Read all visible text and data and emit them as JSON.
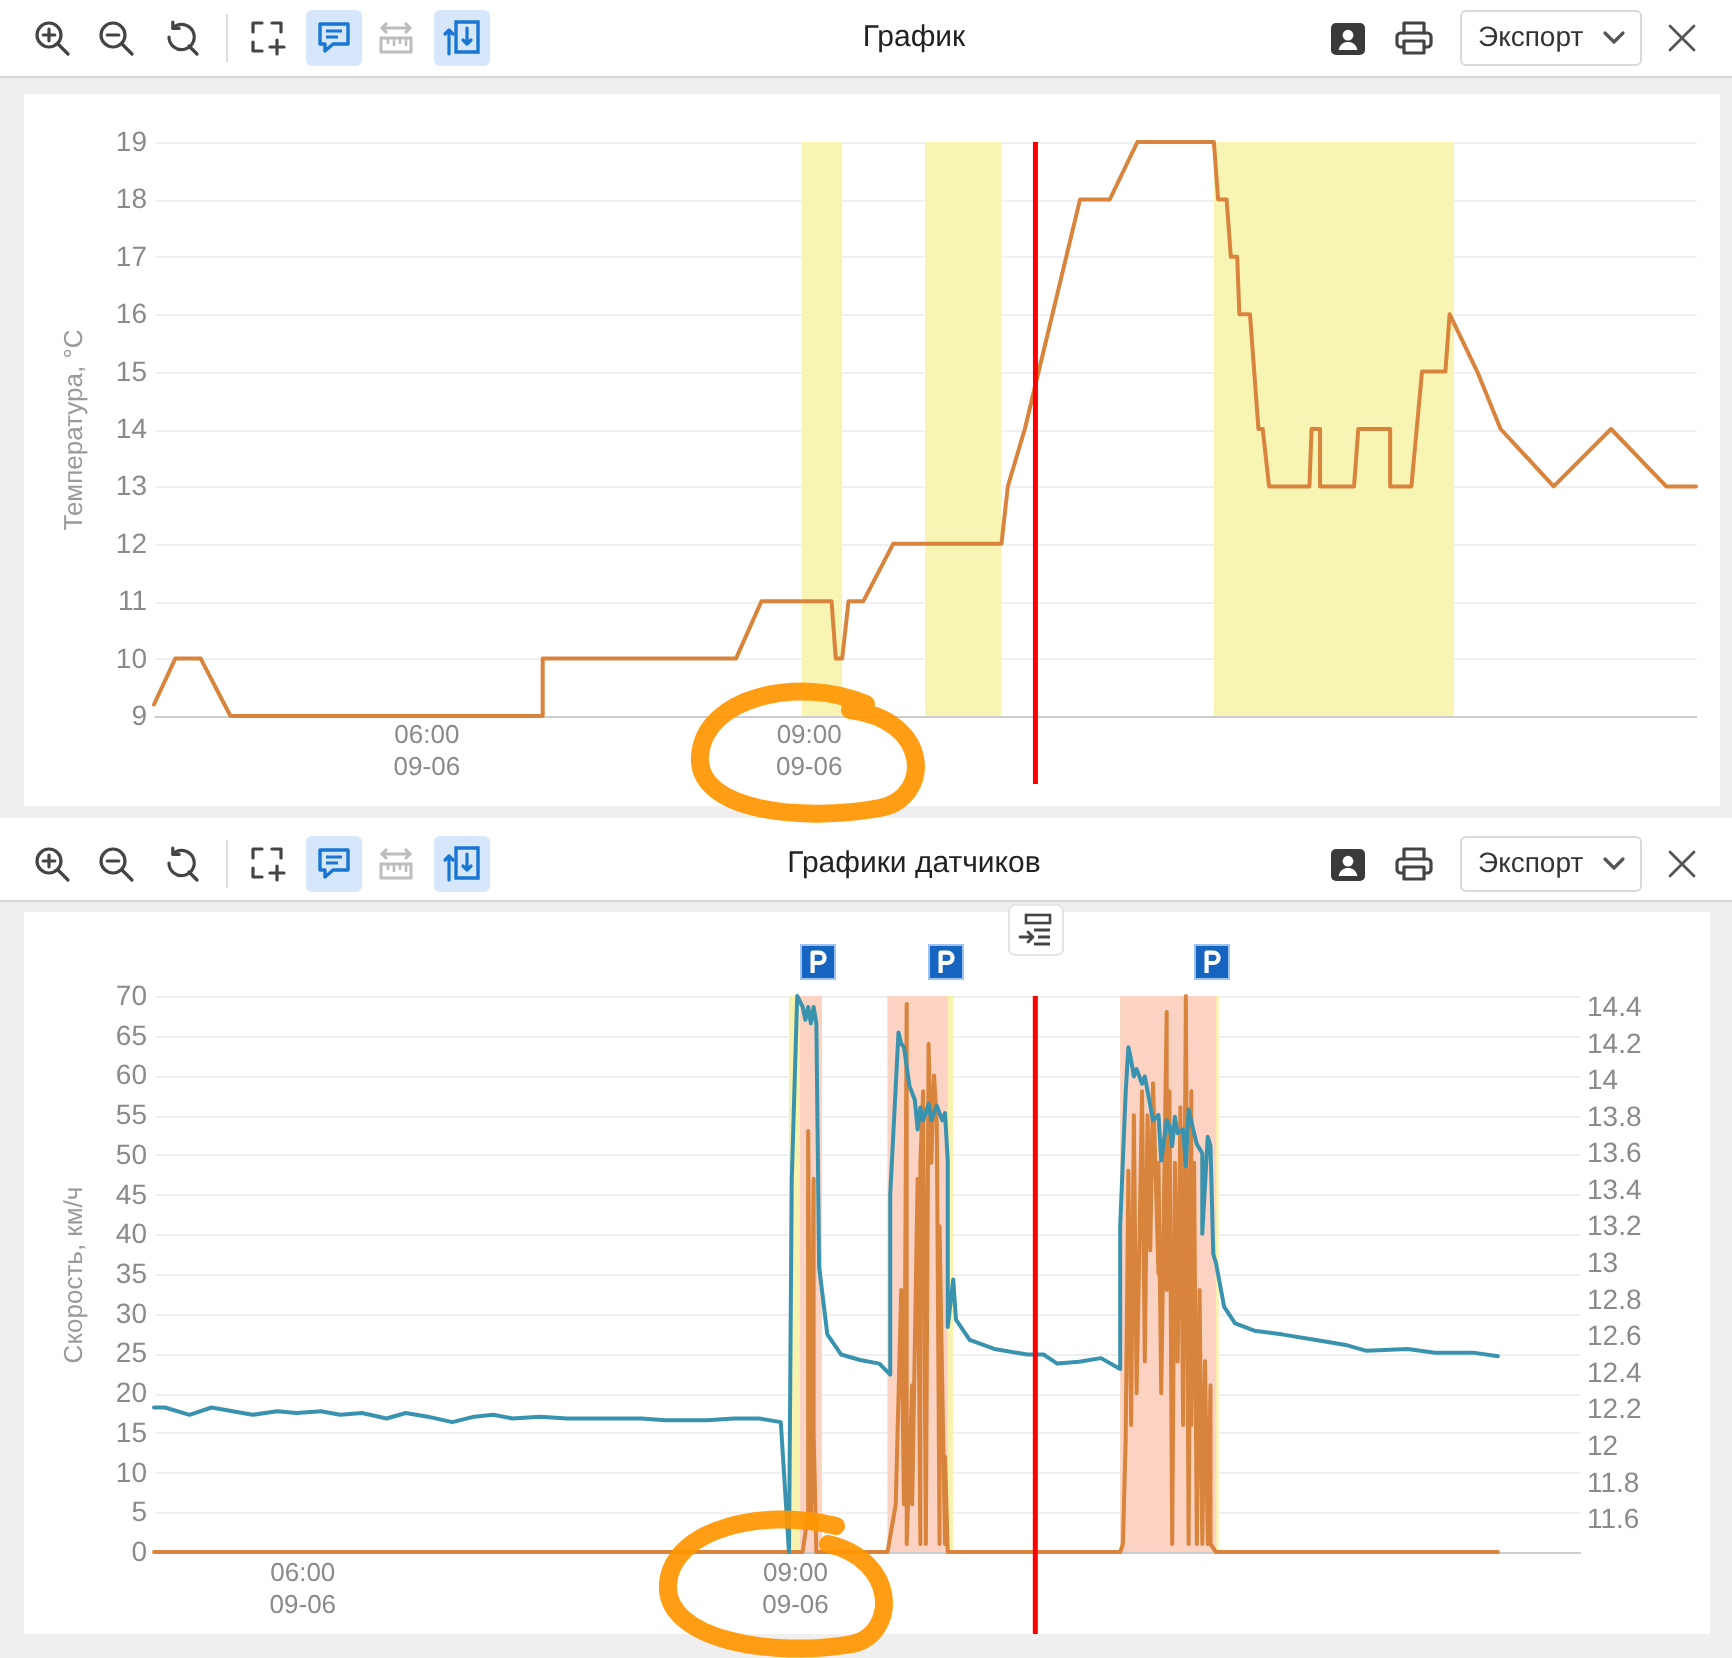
{
  "chart_data": [
    {
      "type": "line",
      "title": "График",
      "ylabel": "Температура, °C",
      "x": [
        "--09-06T03:52",
        "--09-06T04:02",
        "--09-06T04:14",
        "--09-06T04:28",
        "--09-06T06:55",
        "--09-06T06:55",
        "--09-06T08:26",
        "--09-06T08:38",
        "--09-06T09:11",
        "--09-06T09:13",
        "--09-06T09:16",
        "--09-06T09:19",
        "--09-06T09:26",
        "--09-06T09:40",
        "--09-06T10:31",
        "--09-06T10:34",
        "--09-06T10:42",
        "--09-06T11:08",
        "--09-06T11:22",
        "--09-06T11:35",
        "--09-06T12:11",
        "--09-06T12:13",
        "--09-06T12:17",
        "--09-06T12:19",
        "--09-06T12:22",
        "--09-06T12:23",
        "--09-06T12:28",
        "--09-06T12:30",
        "--09-06T12:32",
        "--09-06T12:34",
        "--09-06T12:37",
        "--09-06T12:56",
        "--09-06T12:57",
        "--09-06T13:01",
        "--09-06T13:01",
        "--09-06T13:17",
        "--09-06T13:19",
        "--09-06T13:34",
        "--09-06T13:34",
        "--09-06T13:44",
        "--09-06T13:49",
        "--09-06T14:00",
        "--09-06T14:02",
        "--09-06T14:15",
        "--09-06T14:26",
        "--09-06T14:51",
        "--09-06T15:18",
        "--09-06T15:44",
        "--09-06T15:58"
      ],
      "series": [
        {
          "color": "#d9843c",
          "values": [
            9.2,
            10,
            10,
            9,
            9,
            10,
            10,
            11,
            11,
            10,
            10,
            11,
            11,
            12,
            12,
            13,
            14,
            18,
            18,
            19,
            19,
            18,
            18,
            17,
            17,
            16,
            16,
            15,
            14,
            14,
            13,
            13,
            14,
            14,
            13,
            13,
            14,
            14,
            13,
            13,
            15,
            15,
            16,
            15,
            14,
            13,
            14,
            13,
            13
          ]
        }
      ],
      "xlim": [
        "--09-06T03:52",
        "--09-06T15:58"
      ],
      "xticks": [
        {
          "value": "--09-06T06:00",
          "label": "06:00\n09-06"
        },
        {
          "value": "--09-06T09:00",
          "label": "09:00\n09-06"
        }
      ],
      "ylim": [
        9,
        19
      ],
      "yticks": [
        9,
        10,
        11,
        12,
        13,
        14,
        15,
        16,
        17,
        18,
        19
      ],
      "grid": "y",
      "bands": [
        {
          "axis": "x",
          "from": "--09-06T08:57",
          "to": "--09-06T09:16",
          "color": "#f8f4b4"
        },
        {
          "axis": "x",
          "from": "--09-06T09:55",
          "to": "--09-06T10:31",
          "color": "#f8f4b4"
        },
        {
          "axis": "x",
          "from": "--09-06T12:11",
          "to": "--09-06T14:04",
          "color": "#f8f4b4"
        }
      ],
      "ref_lines": [
        {
          "axis": "x",
          "value": "--09-06T10:47",
          "color": "#ff0000"
        }
      ],
      "annotations": [
        "Экспорт"
      ]
    },
    {
      "type": "line",
      "title": "Графики датчиков",
      "ylabel": "Скорость, км/ч",
      "series": [
        {
          "color": "#d9843c",
          "x": [
            "--09-06T05:06",
            "--09-06T09:03",
            "--09-06T09:05",
            "--09-06T09:05",
            "--09-06T09:06",
            "--09-06T09:07",
            "--09-06T09:07",
            "--09-06T09:08",
            "--09-06T09:34",
            "--09-06T09:35",
            "--09-06T09:37",
            "--09-06T09:39",
            "--09-06T09:40",
            "--09-06T09:41",
            "--09-06T09:41",
            "--09-06T09:43",
            "--09-06T09:43",
            "--09-06T09:45",
            "--09-06T09:46",
            "--09-06T09:46",
            "--09-06T09:47",
            "--09-06T09:48",
            "--09-06T09:49",
            "--09-06T09:50",
            "--09-06T09:51",
            "--09-06T09:52",
            "--09-06T09:53",
            "--09-06T09:53",
            "--09-06T09:55",
            "--09-06T09:55",
            "--09-06T09:56",
            "--09-06T10:59",
            "--09-06T11:00",
            "--09-06T11:01",
            "--09-06T11:02",
            "--09-06T11:03",
            "--09-06T11:04",
            "--09-06T11:05",
            "--09-06T11:06",
            "--09-06T11:07",
            "--09-06T11:08",
            "--09-06T11:09",
            "--09-06T11:10",
            "--09-06T11:11",
            "--09-06T11:13",
            "--09-06T11:13",
            "--09-06T11:14",
            "--09-06T11:16",
            "--09-06T11:16",
            "--09-06T11:17",
            "--09-06T11:18",
            "--09-06T11:19",
            "--09-06T11:20",
            "--09-06T11:21",
            "--09-06T11:22",
            "--09-06T11:23",
            "--09-06T11:24",
            "--09-06T11:25",
            "--09-06T11:25",
            "--09-06T11:26",
            "--09-06T11:27",
            "--09-06T11:28",
            "--09-06T11:29",
            "--09-06T11:30",
            "--09-06T11:31",
            "--09-06T11:32",
            "--09-06T11:32",
            "--09-06T11:34",
            "--09-06T13:17"
          ],
          "values": [
            0,
            0,
            5,
            53,
            3,
            47,
            15,
            0,
            0,
            2,
            6,
            33,
            6,
            69,
            1,
            21,
            6,
            47,
            1,
            49,
            58,
            1,
            64,
            49,
            60,
            54,
            1,
            41,
            1,
            12,
            0,
            0,
            1,
            14,
            48,
            16,
            55,
            20,
            38,
            58,
            24,
            55,
            38,
            59,
            35,
            49,
            20,
            68,
            33,
            58,
            1,
            49,
            24,
            56,
            16,
            70,
            1,
            58,
            16,
            49,
            1,
            33,
            1,
            24,
            1,
            21,
            1,
            0,
            0
          ]
        },
        {
          "color": "#3a93ae",
          "axis": "y2",
          "x": [
            "--09-06T05:06",
            "--09-06T05:10",
            "--09-06T05:19",
            "--09-06T05:27",
            "--09-06T05:42",
            "--09-06T05:51",
            "--09-06T05:58",
            "--09-06T06:07",
            "--09-06T06:14",
            "--09-06T06:22",
            "--09-06T06:31",
            "--09-06T06:38",
            "--09-06T06:46",
            "--09-06T06:55",
            "--09-06T07:03",
            "--09-06T07:10",
            "--09-06T07:17",
            "--09-06T07:27",
            "--09-06T07:37",
            "--09-06T07:49",
            "--09-06T08:04",
            "--09-06T08:13",
            "--09-06T08:28",
            "--09-06T08:38",
            "--09-06T08:47",
            "--09-06T08:55",
            "--09-06T08:58",
            "--09-06T08:59",
            "--09-06T09:01",
            "--09-06T09:03",
            "--09-06T09:04",
            "--09-06T09:05",
            "--09-06T09:06",
            "--09-06T09:07",
            "--09-06T09:08",
            "--09-06T09:09",
            "--09-06T09:12",
            "--09-06T09:17",
            "--09-06T09:24",
            "--09-06T09:31",
            "--09-06T09:35",
            "--09-06T09:35",
            "--09-06T09:38",
            "--09-06T09:39",
            "--09-06T09:40",
            "--09-06T09:42",
            "--09-06T09:44",
            "--09-06T09:45",
            "--09-06T09:46",
            "--09-06T09:47",
            "--09-06T09:49",
            "--09-06T09:50",
            "--09-06T09:52",
            "--09-06T09:54",
            "--09-06T09:55",
            "--09-06T09:56",
            "--09-06T09:56",
            "--09-06T09:58",
            "--09-06T09:59",
            "--09-06T10:04",
            "--09-06T10:13",
            "--09-06T10:25",
            "--09-06T10:31",
            "--09-06T10:36",
            "--09-06T10:44",
            "--09-06T10:52",
            "--09-06T10:59",
            "--09-06T10:59",
            "--09-06T11:01",
            "--09-06T11:02",
            "--09-06T11:03",
            "--09-06T11:04",
            "--09-06T11:05",
            "--09-06T11:07",
            "--09-06T11:08",
            "--09-06T11:10",
            "--09-06T11:11",
            "--09-06T11:13",
            "--09-06T11:14",
            "--09-06T11:16",
            "--09-06T11:17",
            "--09-06T11:18",
            "--09-06T11:19",
            "--09-06T11:20",
            "--09-06T11:22",
            "--09-06T11:23",
            "--09-06T11:24",
            "--09-06T11:26",
            "--09-06T11:27",
            "--09-06T11:29",
            "--09-06T11:29",
            "--09-06T11:31",
            "--09-06T11:32",
            "--09-06T11:33",
            "--09-06T11:34",
            "--09-06T11:37",
            "--09-06T11:41",
            "--09-06T11:48",
            "--09-06T11:58",
            "--09-06T12:10",
            "--09-06T12:22",
            "--09-06T12:29",
            "--09-06T12:44",
            "--09-06T12:54",
            "--09-06T13:08",
            "--09-06T13:17"
          ],
          "values": [
            12.21,
            12.21,
            12.17,
            12.21,
            12.17,
            12.19,
            12.18,
            12.19,
            12.17,
            12.18,
            12.15,
            12.18,
            12.16,
            12.13,
            12.16,
            12.17,
            12.15,
            12.16,
            12.15,
            12.15,
            12.15,
            12.14,
            12.14,
            12.15,
            12.15,
            12.13,
            11.42,
            13.45,
            14.46,
            14.4,
            14.33,
            14.4,
            14.31,
            14.4,
            14.31,
            12.98,
            12.61,
            12.5,
            12.47,
            12.45,
            12.39,
            13.38,
            14.26,
            14.2,
            14.18,
            13.97,
            13.89,
            13.73,
            13.85,
            13.78,
            13.87,
            13.78,
            13.86,
            13.78,
            13.82,
            13.56,
            12.65,
            12.91,
            12.69,
            12.58,
            12.53,
            12.5,
            12.5,
            12.45,
            12.46,
            12.48,
            12.42,
            13.2,
            13.93,
            14.18,
            14.11,
            14.02,
            14.06,
            13.98,
            14.02,
            13.86,
            13.78,
            13.81,
            13.56,
            13.78,
            13.75,
            13.64,
            13.8,
            13.71,
            13.73,
            13.53,
            13.84,
            13.71,
            13.65,
            13.6,
            13.16,
            13.69,
            13.64,
            13.05,
            13.0,
            12.76,
            12.67,
            12.63,
            12.61,
            12.58,
            12.55,
            12.52,
            12.53,
            12.51,
            12.51,
            12.49
          ]
        }
      ],
      "xlim": [
        "--09-06T05:06",
        "--09-06T13:47"
      ],
      "xticks": [
        {
          "value": "--09-06T06:00",
          "label": "06:00\n09-06"
        },
        {
          "value": "--09-06T09:00",
          "label": "09:00\n09-06"
        }
      ],
      "ylim": [
        0,
        70
      ],
      "yticks": [
        0,
        5,
        10,
        15,
        20,
        25,
        30,
        35,
        40,
        45,
        50,
        55,
        60,
        65,
        70
      ],
      "y2lim": [
        11.42,
        14.46
      ],
      "y2ticks": [
        11.6,
        11.8,
        12,
        12.2,
        12.4,
        12.6,
        12.8,
        13,
        13.2,
        13.4,
        13.6,
        13.8,
        14,
        14.2,
        14.4
      ],
      "grid": "y",
      "bands": [
        {
          "axis": "x",
          "from": "--09-06T08:58",
          "to": "--09-06T09:10",
          "color": "#f7f2ad"
        },
        {
          "axis": "x",
          "from": "--09-06T09:34",
          "to": "--09-06T09:58",
          "color": "#f7f2ad"
        },
        {
          "axis": "x",
          "from": "--09-06T10:59",
          "to": "--09-06T11:35",
          "color": "#f7f2ad"
        },
        {
          "axis": "x",
          "from": "--09-06T09:02",
          "to": "--09-06T09:10",
          "color": "#fcd3c3"
        },
        {
          "axis": "x",
          "from": "--09-06T09:34",
          "to": "--09-06T09:56",
          "color": "#fcd3c3"
        },
        {
          "axis": "x",
          "from": "--09-06T10:59",
          "to": "--09-06T11:34",
          "color": "#fcd3c3"
        }
      ],
      "ref_lines": [
        {
          "axis": "x",
          "value": "--09-06T10:28",
          "color": "#ff0000"
        }
      ],
      "annotations": [
        "Экспорт"
      ]
    }
  ]
}
